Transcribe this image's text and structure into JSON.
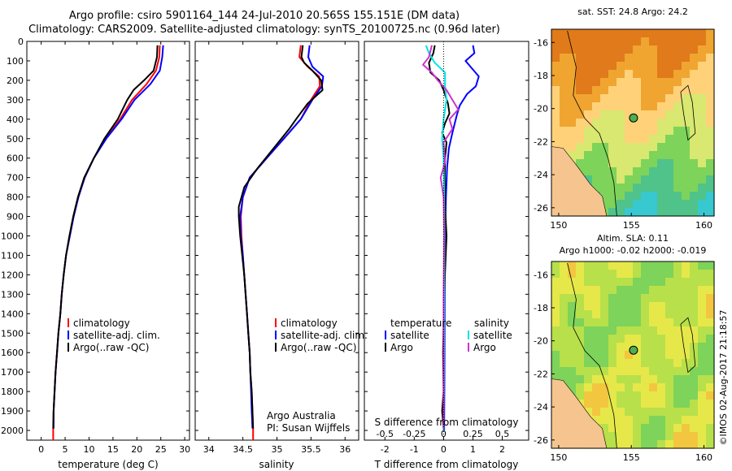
{
  "header": {
    "line1": "Argo profile: csiro 5901164_144 24-Jul-2010 20.565S 155.151E (DM data)",
    "line2": "Climatology: CARS2009. Satellite-adjusted climatology: synTS_20100725.nc (0.96d later)"
  },
  "colors": {
    "clim": "#ff0000",
    "sat": "#0000ff",
    "argo": "#000000",
    "sat_s": "#00e5e5",
    "argo_s": "#cc33cc",
    "land": "#f5c48f"
  },
  "chart_data": [
    {
      "type": "line",
      "xlabel": "temperature (deg C)",
      "ylabel": "",
      "xlim": [
        -3,
        31
      ],
      "ylim": [
        2050,
        0
      ],
      "xticks": [
        "0",
        "5",
        "10",
        "15",
        "20",
        "25",
        "30"
      ],
      "yticks": [
        "0",
        "100",
        "200",
        "300",
        "400",
        "500",
        "600",
        "700",
        "800",
        "900",
        "1000",
        "1100",
        "1200",
        "1300",
        "1400",
        "1500",
        "1600",
        "1700",
        "1800",
        "1900",
        "2000"
      ],
      "legend": [
        "climatology",
        "satellite-adj. clim.",
        "Argo(..raw -QC)"
      ],
      "series": [
        {
          "name": "climatology",
          "color": "clim",
          "points": [
            [
              24.8,
              20
            ],
            [
              24.7,
              80
            ],
            [
              24.0,
              150
            ],
            [
              22.0,
              220
            ],
            [
              19.0,
              300
            ],
            [
              16.5,
              400
            ],
            [
              13.5,
              500
            ],
            [
              11.0,
              600
            ],
            [
              9.0,
              700
            ],
            [
              7.7,
              800
            ],
            [
              6.7,
              900
            ],
            [
              5.9,
              1000
            ],
            [
              5.2,
              1100
            ],
            [
              4.7,
              1200
            ],
            [
              4.3,
              1300
            ],
            [
              4.0,
              1400
            ],
            [
              3.6,
              1500
            ],
            [
              3.3,
              1600
            ],
            [
              3.0,
              1700
            ],
            [
              2.8,
              1800
            ],
            [
              2.6,
              1900
            ],
            [
              2.5,
              2000
            ],
            [
              2.5,
              2050
            ]
          ]
        },
        {
          "name": "satellite-adj. clim.",
          "color": "sat",
          "points": [
            [
              25.5,
              20
            ],
            [
              25.3,
              80
            ],
            [
              24.8,
              150
            ],
            [
              22.8,
              220
            ],
            [
              19.5,
              300
            ],
            [
              16.8,
              400
            ],
            [
              13.6,
              500
            ],
            [
              11.0,
              600
            ],
            [
              9.1,
              700
            ],
            [
              7.8,
              800
            ],
            [
              6.8,
              900
            ],
            [
              6.0,
              1000
            ],
            [
              5.2,
              1100
            ],
            [
              4.7,
              1200
            ],
            [
              4.3,
              1300
            ],
            [
              4.0,
              1400
            ],
            [
              3.6,
              1500
            ],
            [
              3.3,
              1600
            ],
            [
              3.0,
              1700
            ],
            [
              2.8,
              1800
            ],
            [
              2.6,
              1900
            ],
            [
              2.6,
              1990
            ]
          ]
        },
        {
          "name": "Argo(..raw -QC)",
          "color": "argo",
          "points": [
            [
              24.3,
              20
            ],
            [
              24.2,
              80
            ],
            [
              23.5,
              150
            ],
            [
              21.5,
              200
            ],
            [
              19.3,
              250
            ],
            [
              18.0,
              300
            ],
            [
              16.0,
              400
            ],
            [
              13.2,
              500
            ],
            [
              11.0,
              600
            ],
            [
              9.0,
              700
            ],
            [
              7.7,
              800
            ],
            [
              6.7,
              900
            ],
            [
              5.9,
              1000
            ],
            [
              5.2,
              1100
            ],
            [
              4.7,
              1200
            ],
            [
              4.3,
              1300
            ],
            [
              4.0,
              1400
            ],
            [
              3.6,
              1500
            ],
            [
              3.3,
              1600
            ],
            [
              3.0,
              1700
            ],
            [
              2.8,
              1800
            ],
            [
              2.6,
              1900
            ],
            [
              2.5,
              1990
            ]
          ]
        }
      ]
    },
    {
      "type": "line",
      "xlabel": "salinity",
      "xlim": [
        33.8,
        36.2
      ],
      "ylim": [
        2050,
        0
      ],
      "xticks": [
        "34",
        "34.5",
        "35",
        "35.5",
        "36"
      ],
      "legend": [
        "climatology",
        "satellite-adj. clim.",
        "Argo(..raw -QC)"
      ],
      "note1": "Argo Australia",
      "note2": "PI: Susan Wijffels",
      "series": [
        {
          "name": "climatology",
          "color": "clim",
          "points": [
            [
              35.35,
              20
            ],
            [
              35.33,
              80
            ],
            [
              35.45,
              130
            ],
            [
              35.62,
              180
            ],
            [
              35.63,
              230
            ],
            [
              35.5,
              300
            ],
            [
              35.35,
              400
            ],
            [
              35.1,
              500
            ],
            [
              34.85,
              600
            ],
            [
              34.6,
              700
            ],
            [
              34.5,
              800
            ],
            [
              34.47,
              900
            ],
            [
              34.48,
              1000
            ],
            [
              34.5,
              1100
            ],
            [
              34.52,
              1200
            ],
            [
              34.54,
              1300
            ],
            [
              34.56,
              1400
            ],
            [
              34.58,
              1500
            ],
            [
              34.6,
              1600
            ],
            [
              34.61,
              1700
            ],
            [
              34.63,
              1800
            ],
            [
              34.64,
              1900
            ],
            [
              34.65,
              2000
            ],
            [
              34.65,
              2050
            ]
          ]
        },
        {
          "name": "satellite-adj. clim.",
          "color": "sat",
          "points": [
            [
              35.48,
              20
            ],
            [
              35.46,
              80
            ],
            [
              35.52,
              130
            ],
            [
              35.68,
              180
            ],
            [
              35.66,
              230
            ],
            [
              35.52,
              300
            ],
            [
              35.35,
              400
            ],
            [
              35.1,
              500
            ],
            [
              34.85,
              600
            ],
            [
              34.6,
              700
            ],
            [
              34.5,
              800
            ],
            [
              34.46,
              900
            ],
            [
              34.47,
              1000
            ],
            [
              34.5,
              1100
            ],
            [
              34.52,
              1200
            ],
            [
              34.54,
              1300
            ],
            [
              34.56,
              1400
            ],
            [
              34.58,
              1500
            ],
            [
              34.6,
              1600
            ],
            [
              34.61,
              1700
            ],
            [
              34.62,
              1800
            ],
            [
              34.63,
              1900
            ],
            [
              34.64,
              1990
            ]
          ]
        },
        {
          "name": "Argo(..raw -QC)",
          "color": "argo",
          "points": [
            [
              35.38,
              20
            ],
            [
              35.36,
              80
            ],
            [
              35.4,
              110
            ],
            [
              35.52,
              150
            ],
            [
              35.65,
              200
            ],
            [
              35.67,
              250
            ],
            [
              35.45,
              320
            ],
            [
              35.28,
              400
            ],
            [
              35.18,
              450
            ],
            [
              34.95,
              550
            ],
            [
              34.72,
              650
            ],
            [
              34.52,
              750
            ],
            [
              34.44,
              850
            ],
            [
              34.44,
              900
            ],
            [
              34.46,
              1000
            ],
            [
              34.49,
              1100
            ],
            [
              34.52,
              1200
            ],
            [
              34.54,
              1300
            ],
            [
              34.56,
              1400
            ],
            [
              34.58,
              1500
            ],
            [
              34.6,
              1600
            ],
            [
              34.61,
              1700
            ],
            [
              34.63,
              1800
            ],
            [
              34.64,
              1900
            ],
            [
              34.65,
              1990
            ]
          ]
        }
      ]
    },
    {
      "type": "line",
      "xlabel_top": "S difference from climatology",
      "xlabel": "T difference from climatology",
      "xlim": [
        -2.7,
        2.9
      ],
      "ylim": [
        2050,
        0
      ],
      "xticks_t": [
        "-2",
        "-1",
        "0",
        "1",
        "2"
      ],
      "xticks_s": [
        "-0.5",
        "-0.25",
        "0",
        "0.25",
        "0.5"
      ],
      "xticks_s_values": [
        -2,
        -1,
        0,
        1,
        2
      ],
      "legend_t_head": "temperature",
      "legend_s_head": "salinity",
      "legend_t": [
        "satellite",
        "Argo"
      ],
      "legend_s": [
        "satellite",
        "Argo"
      ],
      "series": [
        {
          "name": "T satellite",
          "color": "sat",
          "points": [
            [
              1.0,
              20
            ],
            [
              1.05,
              60
            ],
            [
              0.75,
              100
            ],
            [
              1.2,
              180
            ],
            [
              1.1,
              230
            ],
            [
              0.8,
              270
            ],
            [
              0.55,
              330
            ],
            [
              0.45,
              380
            ],
            [
              0.3,
              470
            ],
            [
              0.18,
              550
            ],
            [
              0.12,
              650
            ],
            [
              0.08,
              800
            ],
            [
              0.05,
              1000
            ],
            [
              0.04,
              1300
            ],
            [
              0.03,
              1700
            ],
            [
              0.02,
              2000
            ]
          ]
        },
        {
          "name": "T Argo",
          "color": "argo",
          "points": [
            [
              -0.3,
              20
            ],
            [
              -0.35,
              60
            ],
            [
              -0.5,
              110
            ],
            [
              -0.45,
              160
            ],
            [
              -0.15,
              200
            ],
            [
              0.0,
              250
            ],
            [
              0.15,
              320
            ],
            [
              0.2,
              370
            ],
            [
              0.05,
              420
            ],
            [
              -0.05,
              470
            ],
            [
              0.1,
              520
            ],
            [
              0.05,
              600
            ],
            [
              0.04,
              700
            ],
            [
              0.05,
              850
            ],
            [
              0.1,
              1000
            ],
            [
              0.02,
              1300
            ],
            [
              -0.02,
              1600
            ],
            [
              0.0,
              1800
            ],
            [
              -0.05,
              1900
            ],
            [
              0.0,
              1990
            ]
          ]
        },
        {
          "name": "S satellite",
          "color": "sat_s",
          "points": [
            [
              -0.6,
              20
            ],
            [
              -0.5,
              60
            ],
            [
              -0.3,
              110
            ],
            [
              0.05,
              160
            ],
            [
              0.05,
              230
            ],
            [
              0.1,
              300
            ],
            [
              0.0,
              400
            ],
            [
              -0.05,
              500
            ],
            [
              0.0,
              600
            ],
            [
              0.02,
              800
            ],
            [
              0.03,
              1000
            ],
            [
              0.02,
              1300
            ],
            [
              0.01,
              1700
            ],
            [
              0.0,
              2000
            ]
          ]
        },
        {
          "name": "S Argo",
          "color": "argo_s",
          "points": [
            [
              -0.4,
              20
            ],
            [
              -0.5,
              80
            ],
            [
              -0.7,
              120
            ],
            [
              -0.4,
              160
            ],
            [
              -0.2,
              200
            ],
            [
              0.1,
              250
            ],
            [
              0.3,
              300
            ],
            [
              0.5,
              350
            ],
            [
              0.2,
              400
            ],
            [
              0.3,
              450
            ],
            [
              0.0,
              520
            ],
            [
              0.05,
              620
            ],
            [
              -0.1,
              700
            ],
            [
              0.0,
              800
            ],
            [
              0.02,
              1000
            ],
            [
              0.0,
              1300
            ],
            [
              0.0,
              1700
            ],
            [
              0.0,
              1990
            ]
          ]
        }
      ]
    }
  ],
  "maps": [
    {
      "title": "sat. SST: 24.8 Argo: 24.2",
      "title2": "",
      "xticks": [
        "150",
        "155",
        "160"
      ],
      "yticks": [
        "-16",
        "-18",
        "-20",
        "-22",
        "-24",
        "-26"
      ],
      "palette": [
        "#e07a1b",
        "#f0a530",
        "#ffd27a",
        "#d8e870",
        "#7ed35a",
        "#4fc38a",
        "#37c8d0",
        "#2f9de8"
      ]
    },
    {
      "title": "Altim. SLA: 0.11",
      "title2": "Argo h1000: -0.02 h2000: -0.019",
      "xticks": [
        "150",
        "155",
        "160"
      ],
      "yticks": [
        "-16",
        "-18",
        "-20",
        "-22",
        "-24",
        "-26"
      ],
      "palette": [
        "#7ed35a",
        "#b8e04a",
        "#e6e84a",
        "#f3c640",
        "#f0a530"
      ]
    }
  ],
  "stamp": "©IMOS 02-Aug-2017 21:18:57"
}
